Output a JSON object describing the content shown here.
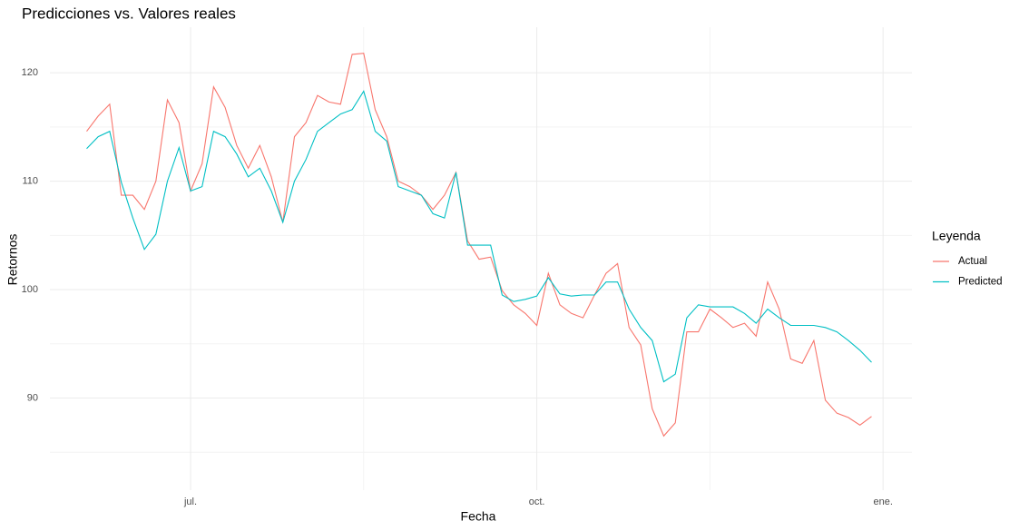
{
  "chart_data": {
    "type": "line",
    "title": "Predicciones vs. Valores reales",
    "x_label": "Fecha",
    "y_label": "Retornos",
    "legend_title": "Leyenda",
    "categories": [
      null,
      null,
      null,
      null,
      null,
      null,
      null,
      null,
      null,
      "jul.",
      null,
      null,
      null,
      null,
      null,
      null,
      null,
      null,
      null,
      null,
      null,
      null,
      null,
      null,
      null,
      null,
      null,
      null,
      null,
      null,
      null,
      null,
      null,
      null,
      null,
      null,
      null,
      null,
      null,
      "oct.",
      null,
      null,
      null,
      null,
      null,
      null,
      null,
      null,
      null,
      null,
      null,
      null,
      null,
      null,
      null,
      null,
      null,
      null,
      null,
      null,
      null,
      null,
      null,
      null,
      null,
      null,
      null,
      null,
      null,
      "ene."
    ],
    "series": [
      {
        "name": "Actual",
        "color": "#F8766D",
        "values": [
          114.6,
          116.0,
          117.1,
          108.7,
          108.7,
          107.4,
          110.0,
          117.5,
          115.4,
          109.1,
          111.6,
          118.7,
          116.8,
          113.3,
          111.2,
          113.3,
          110.4,
          106.2,
          114.1,
          115.4,
          117.9,
          117.3,
          117.1,
          121.7,
          121.8,
          116.6,
          114.1,
          110.0,
          109.5,
          108.7,
          107.4,
          108.7,
          110.8,
          104.5,
          102.8,
          103.0,
          99.9,
          98.6,
          97.8,
          96.7,
          101.5,
          98.6,
          97.8,
          97.4,
          99.5,
          101.5,
          102.4,
          96.5,
          94.9,
          89.0,
          86.5,
          87.7,
          96.1,
          96.1,
          98.2,
          97.4,
          96.5,
          96.9,
          95.7,
          100.7,
          98.2,
          93.6,
          93.2,
          95.3,
          89.8,
          88.6,
          88.2,
          87.5,
          88.3,
          null
        ]
      },
      {
        "name": "Predicted",
        "color": "#00BFC4",
        "values": [
          113.0,
          114.1,
          114.6,
          109.9,
          106.6,
          103.7,
          105.1,
          110.0,
          113.1,
          109.1,
          109.5,
          114.6,
          114.1,
          112.5,
          110.4,
          111.2,
          109.1,
          106.2,
          110.0,
          112.0,
          114.6,
          115.4,
          116.2,
          116.6,
          118.3,
          114.6,
          113.7,
          109.5,
          109.1,
          108.7,
          107.0,
          106.6,
          110.8,
          104.1,
          104.1,
          104.1,
          99.5,
          98.9,
          99.1,
          99.4,
          101.1,
          99.6,
          99.4,
          99.5,
          99.5,
          100.7,
          100.7,
          98.2,
          96.5,
          95.3,
          91.5,
          92.2,
          97.4,
          98.6,
          98.4,
          98.4,
          98.4,
          97.8,
          96.9,
          98.2,
          97.4,
          96.7,
          96.7,
          96.7,
          96.5,
          96.1,
          95.3,
          94.4,
          93.3,
          null
        ]
      }
    ],
    "ylim": [
      81.5,
      124.2
    ],
    "yticks": [
      90,
      100,
      110,
      120
    ],
    "grid": true,
    "legend_position": "right"
  }
}
